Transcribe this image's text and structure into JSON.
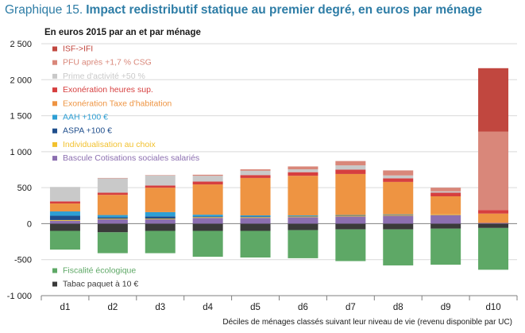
{
  "title": {
    "label": "Graphique 15.",
    "text": "Impact redistributif statique au premier degré, en euros par ménage"
  },
  "colors": {
    "title": "#2e7da6",
    "grid": "#d9d9d9",
    "axis": "#7f7f7f"
  },
  "chart_data": {
    "type": "bar",
    "stacked": true,
    "subtitle": "En euros 2015 par an et par ménage",
    "xlabel": "Déciles de ménages classés  suivant leur niveau de vie (revenu disponible par UC)",
    "ylabel": "",
    "ylim": [
      -1000,
      2500
    ],
    "yticks": [
      -1000,
      -500,
      0,
      500,
      1000,
      1500,
      2000,
      2500
    ],
    "ytick_labels": [
      "-1 000",
      "-500",
      "0",
      "500",
      "1 000",
      "1 500",
      "2 000",
      "2 500"
    ],
    "grid": true,
    "legend_position": "inside, upper-left",
    "categories": [
      "d1",
      "d2",
      "d3",
      "d4",
      "d5",
      "d6",
      "d7",
      "d8",
      "d9",
      "d10"
    ],
    "series": [
      {
        "name": "Tabac paquet à 10 €",
        "color": "#3a3a3a",
        "values": [
          -100,
          -120,
          -100,
          -100,
          -100,
          -90,
          -80,
          -80,
          -70,
          -60
        ]
      },
      {
        "name": "Fiscalité écologique",
        "color": "#5ea866",
        "values": [
          -260,
          -290,
          -310,
          -360,
          -370,
          -390,
          -440,
          -500,
          -500,
          -580
        ]
      },
      {
        "name": "Bascule Cotisations sociales salariés",
        "color": "#8c6fb0",
        "values": [
          40,
          60,
          60,
          80,
          80,
          90,
          100,
          110,
          120,
          10
        ]
      },
      {
        "name": "Individualisation au choix",
        "color": "#f2c12e",
        "values": [
          10,
          10,
          10,
          10,
          10,
          10,
          10,
          10,
          10,
          0
        ]
      },
      {
        "name": "ASPA +100 €",
        "color": "#1f4e8c",
        "values": [
          60,
          20,
          30,
          10,
          10,
          5,
          5,
          5,
          0,
          0
        ]
      },
      {
        "name": "AAH +100 €",
        "color": "#2e9fd4",
        "values": [
          60,
          30,
          60,
          25,
          15,
          10,
          5,
          5,
          0,
          0
        ]
      },
      {
        "name": "Exonération Taxe d'habitation",
        "color": "#ee9442",
        "values": [
          110,
          280,
          340,
          420,
          520,
          550,
          570,
          450,
          250,
          130
        ]
      },
      {
        "name": "Exonération heures sup.",
        "color": "#d63f3f",
        "values": [
          30,
          30,
          30,
          40,
          40,
          50,
          60,
          50,
          50,
          50
        ]
      },
      {
        "name": "Prime d'activité +50 %",
        "color": "#c9c9c9",
        "values": [
          200,
          200,
          140,
          80,
          60,
          40,
          60,
          40,
          20,
          0
        ]
      },
      {
        "name": "PFU après +1,7 % CSG",
        "color": "#d9877a",
        "values": [
          0,
          5,
          5,
          15,
          20,
          40,
          60,
          70,
          50,
          1090
        ]
      },
      {
        "name": "ISF->IFI",
        "color": "#c1473f",
        "values": [
          0,
          0,
          0,
          0,
          0,
          0,
          0,
          0,
          0,
          880
        ]
      }
    ],
    "legend_top": [
      "ISF->IFI",
      "PFU après +1,7 % CSG",
      "Prime d'activité +50 %",
      "Exonération heures sup.",
      "Exonération Taxe d'habitation",
      "AAH +100 €",
      "ASPA +100 €",
      "Individualisation au choix",
      "Bascule Cotisations sociales salariés"
    ],
    "legend_bottom": [
      "Fiscalité écologique",
      "Tabac paquet à 10 €"
    ]
  }
}
